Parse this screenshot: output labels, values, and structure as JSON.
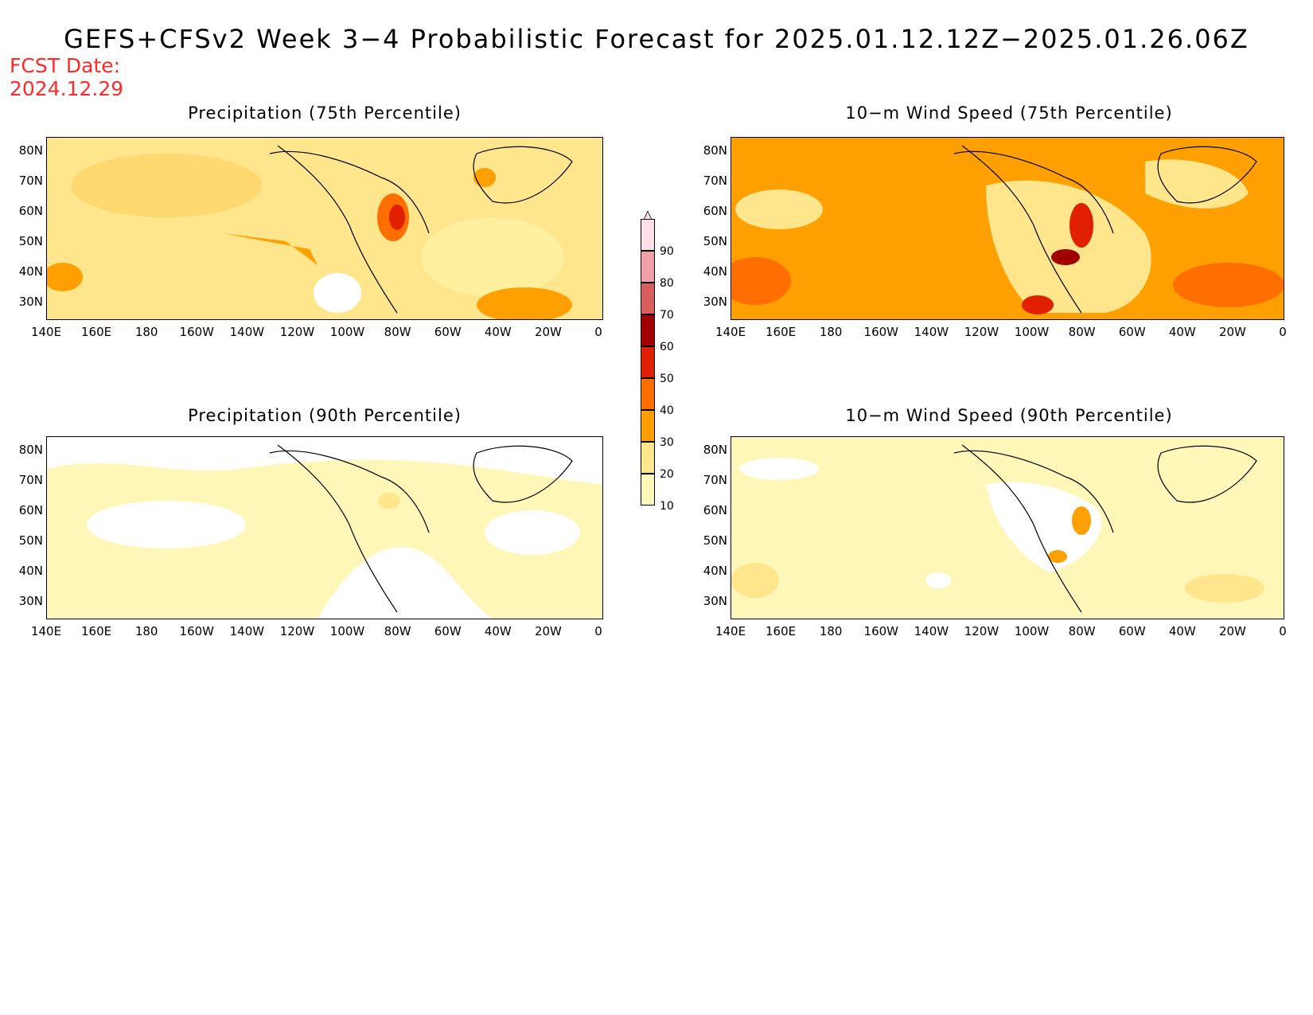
{
  "title": "GEFS+CFSv2 Week 3−4 Probabilistic Forecast for 2025.01.12.12Z−2025.01.26.06Z",
  "fcst_date_label": "FCST Date:",
  "fcst_date_value": "2024.12.29",
  "panels": [
    {
      "title": "Precipitation (75th Percentile)"
    },
    {
      "title": "10−m Wind Speed (75th Percentile)"
    },
    {
      "title": "Precipitation (90th Percentile)"
    },
    {
      "title": "10−m Wind Speed (90th Percentile)"
    }
  ],
  "lat_labels": [
    "80N",
    "70N",
    "60N",
    "50N",
    "40N",
    "30N"
  ],
  "lon_labels": [
    "140E",
    "160E",
    "180",
    "160W",
    "140W",
    "120W",
    "100W",
    "80W",
    "60W",
    "40W",
    "20W",
    "0"
  ],
  "colorbar": {
    "levels": [
      "10",
      "20",
      "30",
      "40",
      "50",
      "60",
      "70",
      "80",
      "90"
    ],
    "colors": [
      "#fff7b8",
      "#ffe58c",
      "#ffa000",
      "#ff6e00",
      "#e02000",
      "#a00000",
      "#d95f5f",
      "#f0a0a8",
      "#ffe0e8"
    ]
  },
  "colors": {
    "title": "#000000",
    "fcst_date": "#ff2a2a",
    "white": "#ffffff",
    "pale_yellow": "#fff7b8",
    "light_yellow": "#ffe58c",
    "orange": "#ffa000",
    "dark_orange": "#ff6e00",
    "red": "#e02000",
    "dark_red": "#a00000"
  }
}
